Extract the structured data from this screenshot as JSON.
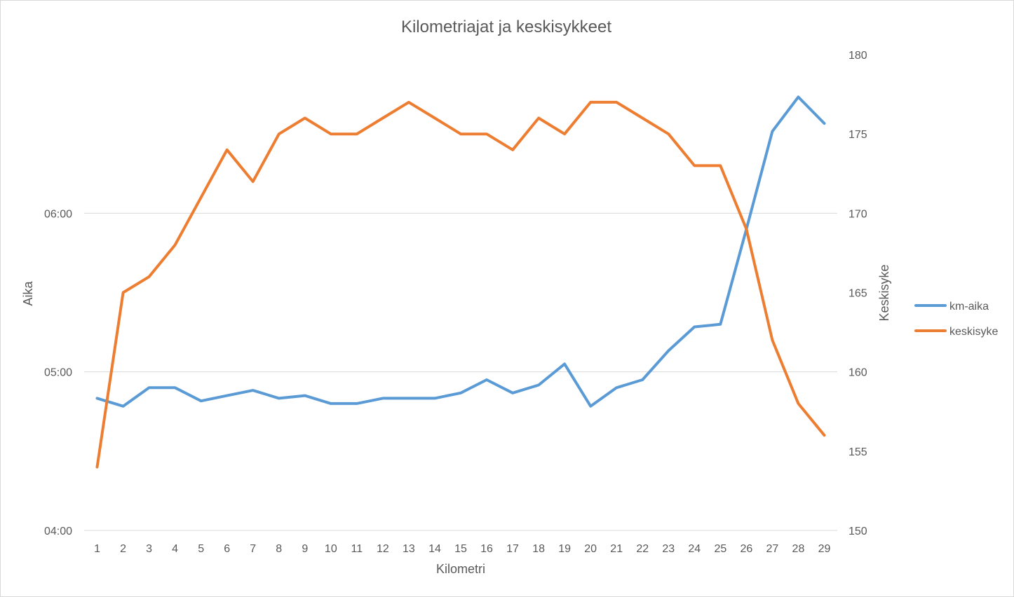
{
  "chart_data": {
    "type": "line",
    "title": "Kilometriajat ja keskisykkeet",
    "xlabel": "Kilometri",
    "ylabel_left": "Aika",
    "ylabel_right": "Keskisyke",
    "categories": [
      "1",
      "2",
      "3",
      "4",
      "5",
      "6",
      "7",
      "8",
      "9",
      "10",
      "11",
      "12",
      "13",
      "14",
      "15",
      "16",
      "17",
      "18",
      "19",
      "20",
      "21",
      "22",
      "23",
      "24",
      "25",
      "26",
      "27",
      "28",
      "29"
    ],
    "y_left": {
      "ticks": [
        "04:00",
        "05:00",
        "06:00"
      ],
      "range_seconds": [
        240,
        420
      ]
    },
    "y_right": {
      "ticks": [
        150,
        155,
        160,
        165,
        170,
        175,
        180
      ],
      "range": [
        150,
        180
      ]
    },
    "gridlines": true,
    "legend_position": "right",
    "series": [
      {
        "name": "km-aika",
        "axis": "left",
        "color": "#5B9BD5",
        "values": [
          "04:50",
          "04:47",
          "04:54",
          "04:54",
          "04:49",
          "04:51",
          "04:53",
          "04:50",
          "04:51",
          "04:48",
          "04:48",
          "04:50",
          "04:50",
          "04:50",
          "04:52",
          "04:57",
          "04:52",
          "04:55",
          "05:03",
          "04:47",
          "04:54",
          "04:57",
          "05:08",
          "05:17",
          "05:18",
          "05:54",
          "06:31",
          "06:44",
          "06:34"
        ]
      },
      {
        "name": "keskisyke",
        "axis": "right",
        "color": "#ED7D31",
        "values": [
          154,
          165,
          166,
          168,
          171,
          174,
          172,
          175,
          176,
          175,
          175,
          176,
          177,
          176,
          175,
          175,
          174,
          176,
          175,
          177,
          177,
          176,
          175,
          173,
          173,
          169,
          162,
          158,
          156
        ]
      }
    ]
  }
}
